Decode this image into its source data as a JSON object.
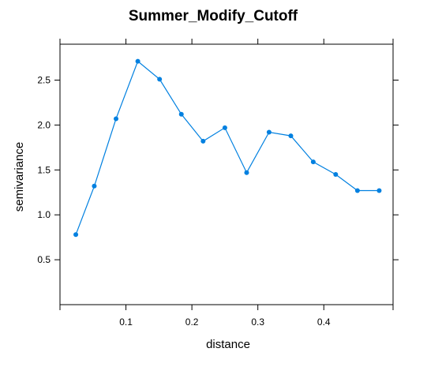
{
  "chart_data": {
    "type": "line",
    "title": "Summer_Modify_Cutoff",
    "xlabel": "distance",
    "ylabel": "semivariance",
    "xlim": [
      0.0,
      0.505
    ],
    "ylim": [
      0.0,
      2.9
    ],
    "grid": false,
    "line_color": "#0080e0",
    "x": [
      0.024,
      0.052,
      0.085,
      0.118,
      0.151,
      0.184,
      0.217,
      0.25,
      0.283,
      0.317,
      0.35,
      0.384,
      0.418,
      0.451,
      0.484
    ],
    "y": [
      0.78,
      1.32,
      2.07,
      2.71,
      2.51,
      2.12,
      1.82,
      1.97,
      1.47,
      1.92,
      1.88,
      1.59,
      1.45,
      1.27,
      1.27
    ],
    "xticks": [
      0.1,
      0.2,
      0.3,
      0.4
    ],
    "xtick_labels": [
      "0.1",
      "0.2",
      "0.3",
      "0.4"
    ],
    "yticks": [
      0.5,
      1.0,
      1.5,
      2.0,
      2.5
    ],
    "ytick_labels": [
      "0.5",
      "1.0",
      "1.5",
      "2.0",
      "2.5"
    ]
  }
}
